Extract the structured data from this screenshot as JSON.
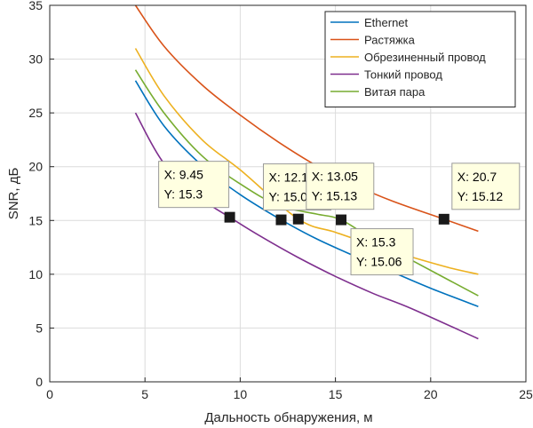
{
  "chart_data": {
    "type": "line",
    "xlabel": "Дальность обнаружения, м",
    "ylabel": "SNR, дБ",
    "xlim": [
      0,
      25
    ],
    "ylim": [
      0,
      35
    ],
    "xticks": [
      0,
      5,
      10,
      15,
      20,
      25
    ],
    "yticks": [
      0,
      5,
      10,
      15,
      20,
      25,
      30,
      35
    ],
    "grid": true,
    "legend_position": "top-right",
    "series": [
      {
        "name": "Ethernet",
        "color": "#0072BD",
        "x": [
          4.5,
          6,
          8,
          10,
          12.15,
          14,
          16,
          18,
          20,
          22.5
        ],
        "y": [
          28,
          23.8,
          20.1,
          17.4,
          15.06,
          13.3,
          11.7,
          10.2,
          8.7,
          7
        ]
      },
      {
        "name": "Растяжка",
        "color": "#D95319",
        "x": [
          4.5,
          6,
          8,
          10,
          12,
          14,
          16,
          18,
          20.7,
          22.5
        ],
        "y": [
          35,
          31.2,
          27.6,
          24.8,
          22.3,
          20.1,
          18.3,
          16.8,
          15.12,
          14
        ]
      },
      {
        "name": "Обрезиненный провод",
        "color": "#EDB120",
        "x": [
          4.5,
          6,
          8,
          10,
          13.05,
          15,
          17,
          19,
          21,
          22.5
        ],
        "y": [
          31,
          26.6,
          22.5,
          19.7,
          15.13,
          13.9,
          12.7,
          11.6,
          10.6,
          10
        ]
      },
      {
        "name": "Тонкий провод",
        "color": "#7E2F8E",
        "x": [
          4.5,
          6,
          8,
          9.45,
          11,
          13,
          15,
          17,
          19,
          22.5
        ],
        "y": [
          25,
          20.3,
          17,
          15.3,
          13.6,
          11.6,
          9.8,
          8.2,
          6.8,
          4
        ]
      },
      {
        "name": "Витая пара",
        "color": "#77AC30",
        "x": [
          4.5,
          6,
          8,
          10,
          12,
          14,
          15.3,
          17,
          19,
          22.5
        ],
        "y": [
          29,
          25,
          21,
          18.4,
          16.4,
          15.6,
          15.06,
          13.2,
          11.3,
          8
        ]
      }
    ],
    "datatips": [
      {
        "x": 9.45,
        "y": 15.3,
        "x_text": "X: 9.45",
        "y_text": "Y: 15.3"
      },
      {
        "x": 12.15,
        "y": 15.06,
        "x_text": "X: 12.15",
        "y_text": "Y: 15.06"
      },
      {
        "x": 13.05,
        "y": 15.13,
        "x_text": "X: 13.05",
        "y_text": "Y: 15.13"
      },
      {
        "x": 15.3,
        "y": 15.06,
        "x_text": "X: 15.3",
        "y_text": "Y: 15.06"
      },
      {
        "x": 20.7,
        "y": 15.12,
        "x_text": "X: 20.7",
        "y_text": "Y: 15.12"
      }
    ]
  }
}
